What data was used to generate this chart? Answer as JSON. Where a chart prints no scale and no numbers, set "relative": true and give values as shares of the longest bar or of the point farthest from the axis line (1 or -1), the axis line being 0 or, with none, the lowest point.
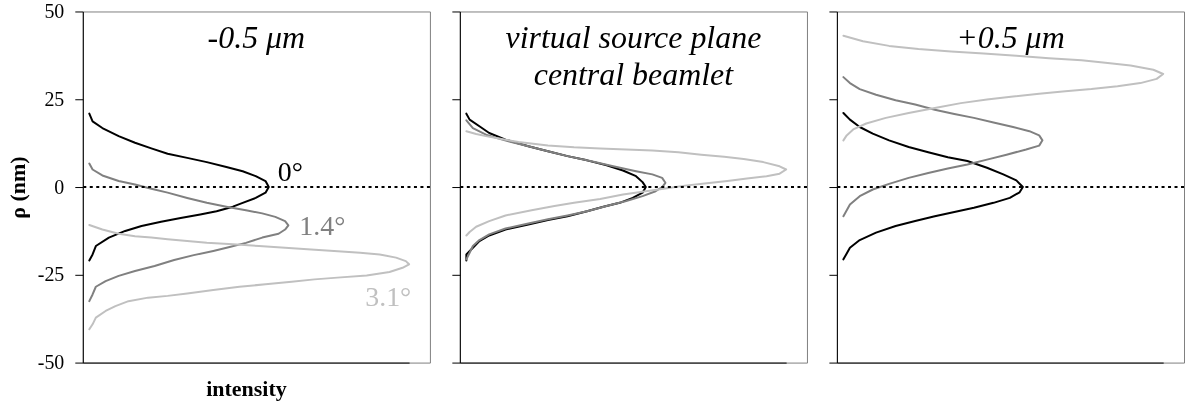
{
  "chart_data": [
    {
      "type": "line",
      "orientation": "horizontal",
      "relative": true,
      "title": "-0.5 μm",
      "xlabel": "intensity",
      "ylabel": "ρ (nm)",
      "ylim": [
        -50,
        50
      ],
      "yticks": [
        -50,
        -25,
        0,
        25,
        50
      ],
      "tick_labels": "y",
      "ref_lines": [
        {
          "axis": "y",
          "value": 0,
          "color": "#000000",
          "line_style": "dotted"
        }
      ],
      "series": [
        {
          "name": "0°",
          "color": "#000000",
          "x": [
            20.9,
            18.7,
            16.8,
            14.5,
            12.6,
            11.0,
            9.5,
            8.3,
            7.1,
            5.7,
            4.5,
            3.1,
            1.7,
            0,
            -1.6,
            -3.1,
            -4.5,
            -5.6,
            -6.9,
            -7.8,
            -8.8,
            -9.9,
            -11.1,
            -12.5,
            -14.4,
            -16.8,
            -19.2,
            -20.9
          ],
          "values": [
            0.02,
            0.03,
            0.06,
            0.11,
            0.16,
            0.21,
            0.26,
            0.32,
            0.38,
            0.44,
            0.49,
            0.53,
            0.56,
            0.57,
            0.56,
            0.53,
            0.49,
            0.46,
            0.41,
            0.36,
            0.3,
            0.24,
            0.18,
            0.13,
            0.08,
            0.04,
            0.03,
            0.02
          ]
        },
        {
          "name": "1.4°",
          "color": "#808080",
          "x": [
            6.7,
            5.0,
            3.3,
            1.7,
            0.7,
            -0.5,
            -1.6,
            -3.1,
            -4.5,
            -5.6,
            -6.6,
            -7.5,
            -8.5,
            -9.7,
            -10.9,
            -12.1,
            -13.3,
            -14.4,
            -15.9,
            -17.1,
            -18.2,
            -19.4,
            -20.8,
            -22.5,
            -23.9,
            -25.3,
            -26.8,
            -28.4,
            -30.6,
            -32.5
          ],
          "values": [
            0.02,
            0.03,
            0.06,
            0.11,
            0.16,
            0.21,
            0.26,
            0.32,
            0.38,
            0.44,
            0.5,
            0.55,
            0.59,
            0.62,
            0.63,
            0.62,
            0.6,
            0.55,
            0.5,
            0.45,
            0.4,
            0.34,
            0.28,
            0.22,
            0.16,
            0.11,
            0.07,
            0.04,
            0.03,
            0.02
          ]
        },
        {
          "name": "3.1°",
          "color": "#c0c0c0",
          "x": [
            -10.8,
            -12.1,
            -13.3,
            -14.0,
            -14.4,
            -14.9,
            -15.4,
            -15.9,
            -16.3,
            -16.8,
            -17.3,
            -17.8,
            -18.2,
            -18.7,
            -19.2,
            -20.1,
            -21.1,
            -22.0,
            -23.0,
            -24.2,
            -25.2,
            -25.8,
            -26.3,
            -27.0,
            -27.7,
            -28.4,
            -29.3,
            -30.3,
            -31.0,
            -31.5,
            -32.5,
            -33.9,
            -35.3,
            -37.2,
            -39.1,
            -40.5
          ],
          "values": [
            0.02,
            0.06,
            0.11,
            0.16,
            0.21,
            0.26,
            0.32,
            0.38,
            0.46,
            0.54,
            0.62,
            0.7,
            0.77,
            0.85,
            0.91,
            0.96,
            0.99,
            1.0,
            0.98,
            0.94,
            0.87,
            0.78,
            0.71,
            0.64,
            0.56,
            0.48,
            0.4,
            0.32,
            0.26,
            0.2,
            0.14,
            0.1,
            0.07,
            0.04,
            0.03,
            0.02
          ]
        }
      ]
    },
    {
      "type": "line",
      "orientation": "horizontal",
      "relative": true,
      "title": "virtual source plane\ncentral beamlet",
      "ylim": [
        -50,
        50
      ],
      "yticks": [
        -50,
        -25,
        0,
        25,
        50
      ],
      "tick_labels": false,
      "ref_lines": [
        {
          "axis": "y",
          "value": 0,
          "color": "#000000",
          "line_style": "dotted"
        }
      ],
      "series": [
        {
          "color": "#000000",
          "x": [
            20.9,
            19.2,
            17.3,
            15.4,
            13.5,
            11.6,
            10.2,
            8.8,
            7.6,
            6.2,
            4.7,
            3.1,
            1.4,
            0,
            -1.6,
            -3.1,
            -4.5,
            -5.6,
            -6.9,
            -8.3,
            -9.4,
            -10.7,
            -12.1,
            -13.8,
            -15.4,
            -17.3,
            -19.2,
            -20.9
          ],
          "values": [
            0.02,
            0.03,
            0.06,
            0.09,
            0.14,
            0.21,
            0.27,
            0.33,
            0.39,
            0.45,
            0.5,
            0.54,
            0.56,
            0.57,
            0.56,
            0.53,
            0.49,
            0.44,
            0.39,
            0.33,
            0.27,
            0.21,
            0.14,
            0.09,
            0.06,
            0.04,
            0.02,
            0.02
          ]
        },
        {
          "color": "#808080",
          "x": [
            19.0,
            16.8,
            14.9,
            13.5,
            11.6,
            10.2,
            8.8,
            7.4,
            5.9,
            4.5,
            3.6,
            2.6,
            1.2,
            0,
            -1.2,
            -2.6,
            -4.0,
            -5.4,
            -6.9,
            -8.1,
            -9.2,
            -10.4,
            -11.8,
            -13.5,
            -15.1,
            -16.8,
            -18.7,
            -20.6
          ],
          "values": [
            0.02,
            0.04,
            0.08,
            0.13,
            0.21,
            0.27,
            0.33,
            0.4,
            0.47,
            0.54,
            0.59,
            0.62,
            0.63,
            0.62,
            0.6,
            0.56,
            0.51,
            0.45,
            0.39,
            0.33,
            0.27,
            0.21,
            0.14,
            0.09,
            0.06,
            0.04,
            0.03,
            0.02
          ]
        },
        {
          "color": "#c0c0c0",
          "x": [
            15.9,
            15.1,
            14.5,
            13.8,
            12.8,
            11.8,
            11.3,
            11.0,
            10.7,
            10.4,
            9.9,
            9.2,
            8.6,
            8.0,
            7.1,
            5.9,
            5.0,
            3.8,
            3.1,
            2.4,
            1.7,
            1.0,
            0.4,
            -0.4,
            -1.2,
            -2.1,
            -3.4,
            -4.5,
            -5.4,
            -6.6,
            -8.1,
            -9.7,
            -11.3,
            -12.8,
            -13.8
          ],
          "values": [
            0.02,
            0.05,
            0.08,
            0.12,
            0.18,
            0.27,
            0.35,
            0.43,
            0.51,
            0.59,
            0.67,
            0.74,
            0.81,
            0.87,
            0.93,
            0.98,
            1.0,
            0.98,
            0.94,
            0.88,
            0.82,
            0.75,
            0.69,
            0.63,
            0.57,
            0.5,
            0.43,
            0.35,
            0.29,
            0.22,
            0.14,
            0.09,
            0.05,
            0.03,
            0.02
          ]
        }
      ]
    },
    {
      "type": "line",
      "orientation": "horizontal",
      "relative": true,
      "title": "+0.5 μm",
      "ylim": [
        -50,
        50
      ],
      "yticks": [
        -50,
        -25,
        0,
        25,
        50
      ],
      "tick_labels": false,
      "ref_lines": [
        {
          "axis": "y",
          "value": 0,
          "color": "#000000",
          "line_style": "dotted"
        }
      ],
      "series": [
        {
          "color": "#000000",
          "x": [
            21.1,
            19.2,
            17.1,
            15.2,
            13.3,
            11.4,
            9.9,
            8.5,
            7.4,
            5.5,
            3.6,
            1.9,
            0,
            -1.5,
            -3.1,
            -4.5,
            -5.9,
            -7.1,
            -8.3,
            -9.7,
            -11.1,
            -13.0,
            -15.1,
            -17.3,
            -20.6
          ],
          "values": [
            0.02,
            0.04,
            0.07,
            0.11,
            0.16,
            0.22,
            0.28,
            0.34,
            0.4,
            0.46,
            0.51,
            0.55,
            0.57,
            0.56,
            0.53,
            0.48,
            0.42,
            0.36,
            0.3,
            0.24,
            0.18,
            0.12,
            0.07,
            0.04,
            0.02
          ]
        },
        {
          "color": "#808080",
          "x": [
            31.3,
            29.6,
            27.9,
            26.3,
            24.7,
            23.5,
            22.0,
            20.8,
            19.7,
            18.4,
            17.1,
            15.9,
            14.7,
            13.3,
            11.8,
            10.7,
            9.2,
            7.8,
            6.4,
            5.3,
            4.0,
            2.6,
            0.9,
            -0.7,
            -2.6,
            -5.0,
            -8.3
          ],
          "values": [
            0.02,
            0.04,
            0.07,
            0.12,
            0.18,
            0.24,
            0.3,
            0.36,
            0.42,
            0.48,
            0.54,
            0.59,
            0.62,
            0.63,
            0.62,
            0.58,
            0.52,
            0.46,
            0.4,
            0.34,
            0.28,
            0.22,
            0.16,
            0.11,
            0.07,
            0.04,
            0.02
          ]
        },
        {
          "color": "#c0c0c0",
          "x": [
            43.1,
            41.5,
            40.2,
            39.3,
            38.6,
            38.0,
            37.4,
            36.7,
            36.1,
            35.3,
            34.6,
            33.4,
            32.2,
            30.8,
            29.6,
            28.7,
            27.9,
            27.3,
            26.6,
            25.8,
            24.9,
            23.9,
            22.5,
            21.1,
            19.7,
            18.1,
            16.4,
            14.7,
            13.3
          ],
          "values": [
            0.02,
            0.08,
            0.16,
            0.25,
            0.35,
            0.45,
            0.55,
            0.65,
            0.75,
            0.83,
            0.9,
            0.97,
            1.0,
            0.98,
            0.93,
            0.86,
            0.78,
            0.7,
            0.62,
            0.54,
            0.46,
            0.38,
            0.3,
            0.22,
            0.15,
            0.09,
            0.05,
            0.03,
            0.02
          ]
        }
      ]
    }
  ]
}
